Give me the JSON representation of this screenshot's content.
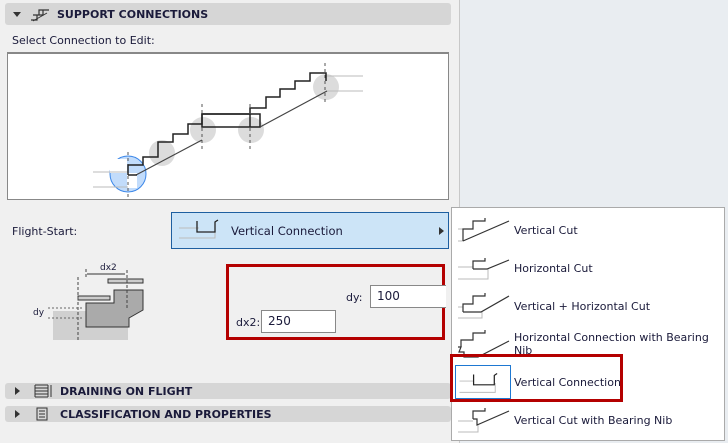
{
  "sections": {
    "support": "SUPPORT CONNECTIONS",
    "draining": "DRAINING ON FLIGHT",
    "classification": "CLASSIFICATION AND PROPERTIES"
  },
  "select_label": "Select Connection to Edit:",
  "flight_start": {
    "label": "Flight-Start:",
    "value": "Vertical Connection"
  },
  "diagram_labels": {
    "dx2": "dx2",
    "dy": "dy"
  },
  "fields": {
    "dy_label": "dy:",
    "dy_value": "100",
    "dx2_label": "dx2:",
    "dx2_value": "250"
  },
  "menu": {
    "items": [
      {
        "label": "Vertical Cut",
        "icon": "vertical-cut-icon"
      },
      {
        "label": "Horizontal Cut",
        "icon": "horizontal-cut-icon"
      },
      {
        "label": "Vertical + Horizontal Cut",
        "icon": "vertical-horizontal-cut-icon"
      },
      {
        "label": "Horizontal Connection with Bearing Nib",
        "icon": "horizontal-connection-nib-icon"
      },
      {
        "label": "Vertical Connection",
        "icon": "vertical-connection-icon",
        "selected": true
      },
      {
        "label": "Vertical Cut with Bearing Nib",
        "icon": "vertical-cut-nib-icon"
      }
    ]
  },
  "colors": {
    "highlight": "#b40000",
    "selection": "#cce4f7",
    "accent": "#1e78d2"
  }
}
